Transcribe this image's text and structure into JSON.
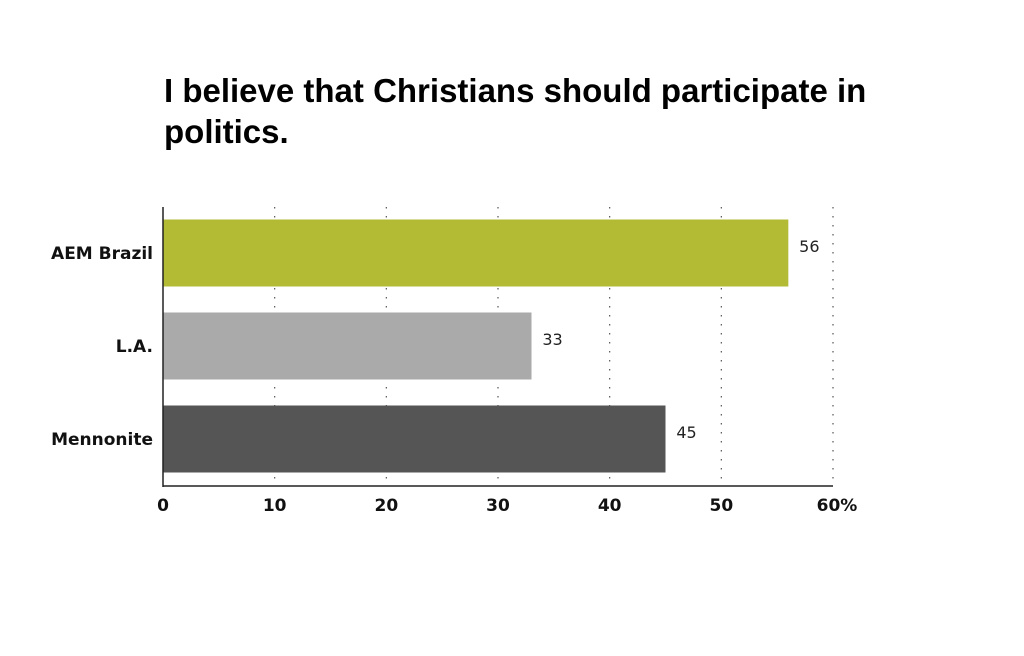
{
  "chart_data": {
    "type": "bar",
    "orientation": "horizontal",
    "title": "I believe that Christians should participate in politics.",
    "xlabel": "",
    "ylabel": "",
    "categories": [
      "AEM Brazil",
      "L.A.",
      "Mennonite"
    ],
    "values": [
      56,
      33,
      45
    ],
    "data_labels": [
      "56",
      "33",
      "45"
    ],
    "bar_colors": [
      "#b3bb35",
      "#aaaaaa",
      "#555555"
    ],
    "xlim": [
      0,
      60
    ],
    "ticks": [
      0,
      10,
      20,
      30,
      40,
      50,
      60
    ],
    "tick_labels": [
      "0",
      "10",
      "20",
      "30",
      "40",
      "50",
      "60%"
    ],
    "grid": "vertical dotted",
    "legend": "none"
  }
}
